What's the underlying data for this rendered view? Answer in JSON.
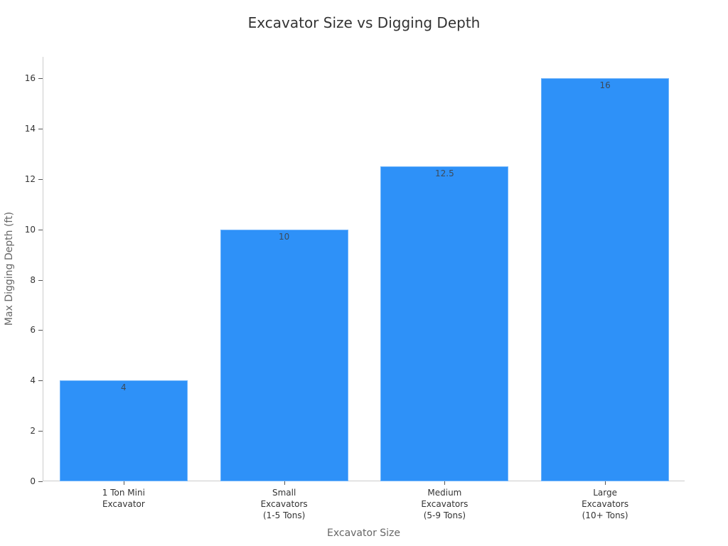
{
  "chart_data": {
    "type": "bar",
    "title": "Excavator Size vs Digging Depth",
    "xlabel": "Excavator Size",
    "ylabel": "Max Digging Depth (ft)",
    "categories": [
      "1 Ton Mini\nExcavator",
      "Small\nExcavators\n(1-5 Tons)",
      "Medium\nExcavators\n(5-9 Tons)",
      "Large\nExcavators\n(10+ Tons)"
    ],
    "values": [
      4,
      10,
      12.5,
      16
    ],
    "data_labels": [
      "4",
      "10",
      "12.5",
      "16"
    ],
    "ylim": [
      0,
      16.8
    ],
    "yticks": [
      0,
      2,
      4,
      6,
      8,
      10,
      12,
      14,
      16
    ],
    "grid": false,
    "legend": null,
    "bar_color": "#2e91f8"
  }
}
